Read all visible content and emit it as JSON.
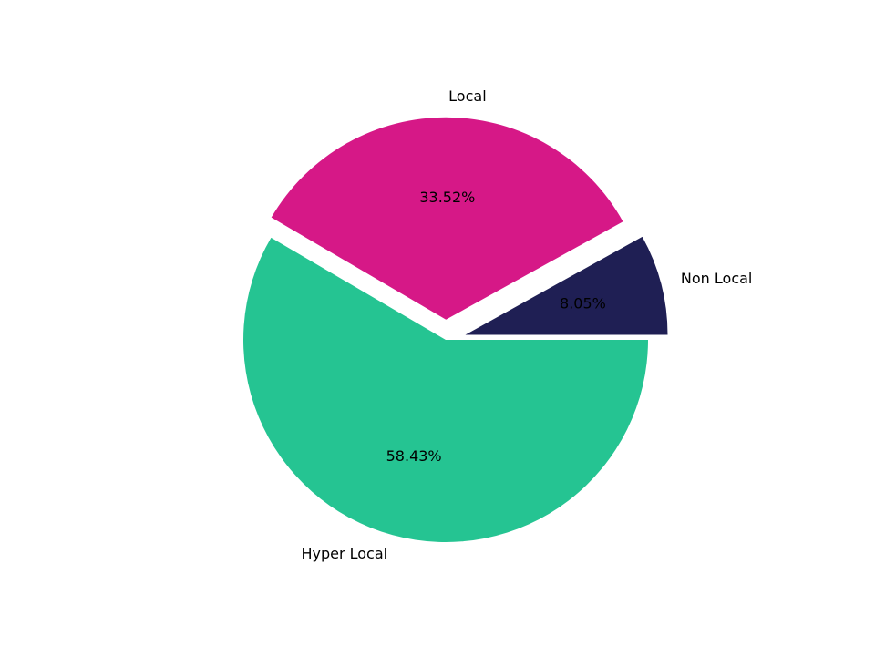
{
  "chart_data": {
    "type": "pie",
    "categories": [
      "Non Local",
      "Local",
      "Hyper Local"
    ],
    "values": [
      8.05,
      33.52,
      58.43
    ],
    "value_labels": [
      "8.05%",
      "33.52%",
      "58.43%"
    ],
    "colors": [
      "#1f1f54",
      "#d61887",
      "#25c492"
    ],
    "explode": [
      0.1,
      0.1,
      0
    ]
  }
}
